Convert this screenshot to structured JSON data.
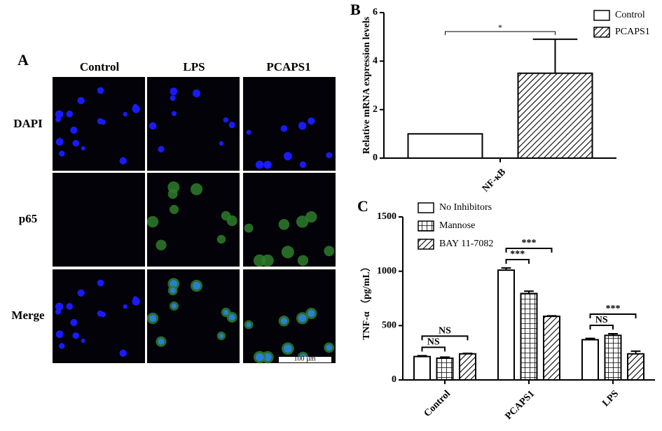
{
  "panel_a": {
    "label": "A",
    "columns": [
      "Control",
      "LPS",
      "PCAPS1"
    ],
    "rows": [
      "DAPI",
      "p65",
      "Merge"
    ],
    "scale_bar": "100 µm"
  },
  "chart_data": [
    {
      "type": "bar",
      "label": "B",
      "ylabel": "Relative mRNA  expression levels",
      "categories": [
        "NF-κB"
      ],
      "series": [
        {
          "name": "Control",
          "color": "#000000",
          "pattern": "none",
          "values": [
            1
          ]
        },
        {
          "name": "PCAPS1",
          "color": "#000000",
          "pattern": "diagonal",
          "values": [
            3.5
          ],
          "errors": [
            1.4
          ]
        }
      ],
      "ylim": [
        0,
        6
      ],
      "yticks": [
        0,
        2,
        4,
        6
      ],
      "significance": "*",
      "legend": "upper right"
    },
    {
      "type": "bar",
      "label": "C",
      "ylabel": "TNF-α （pg/mL）",
      "categories": [
        "Control",
        "PCAPS1",
        "LPS"
      ],
      "series": [
        {
          "name": "No Inhibitors",
          "color": "#000000",
          "pattern": "none",
          "values": [
            215,
            1010,
            370
          ],
          "errors": [
            8,
            20,
            12
          ]
        },
        {
          "name": "Mannose",
          "color": "#000000",
          "pattern": "grid",
          "values": [
            200,
            795,
            410
          ],
          "errors": [
            10,
            22,
            15
          ]
        },
        {
          "name": "BAY 11-7082",
          "color": "#000000",
          "pattern": "diagonal",
          "values": [
            240,
            585,
            240
          ],
          "errors": [
            5,
            5,
            25
          ]
        }
      ],
      "ylim": [
        0,
        1500
      ],
      "yticks": [
        0,
        500,
        1000,
        1500
      ],
      "brackets": [
        [
          "NS",
          "NS"
        ],
        [
          "***",
          "***"
        ],
        [
          "NS",
          "***"
        ]
      ],
      "legend": "upper left"
    }
  ]
}
